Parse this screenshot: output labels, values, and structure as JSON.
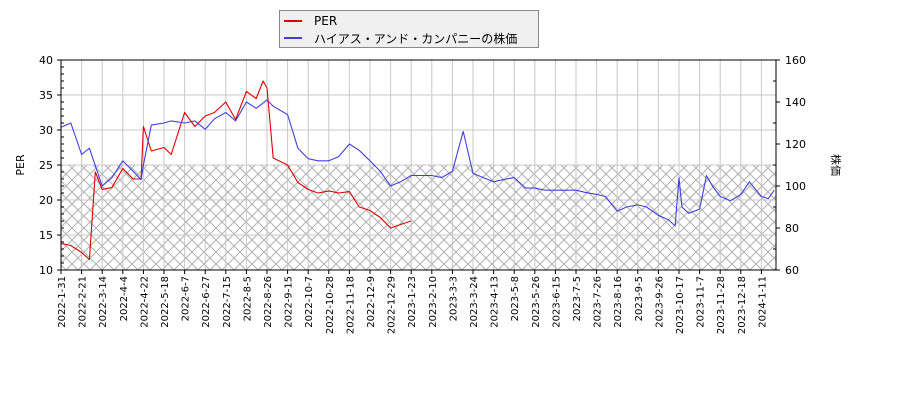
{
  "legend": {
    "items": [
      {
        "label": "PER",
        "color": "#e00000"
      },
      {
        "label": "ハイアス・アンド・カンパニーの株価",
        "color": "#4040e0"
      }
    ]
  },
  "axes": {
    "left_title": "PER",
    "right_title": "株価",
    "left_ticks": [
      "10",
      "15",
      "20",
      "25",
      "30",
      "35",
      "40"
    ],
    "right_ticks": [
      "60",
      "80",
      "100",
      "120",
      "140",
      "160"
    ]
  },
  "chart_data": {
    "type": "line",
    "title": "",
    "xlabel": "",
    "ylabel": "PER",
    "ylabel_right": "株価",
    "ylim": [
      10,
      40
    ],
    "ylim_right": [
      60,
      160
    ],
    "grid": true,
    "legend_position": "top",
    "shaded_region": {
      "axis": "left",
      "from": 10,
      "to": 25,
      "pattern": "crosshatch"
    },
    "x_tick_labels": [
      "2022-1-31",
      "2022-2-21",
      "2022-3-14",
      "2022-4-4",
      "2022-4-22",
      "2022-5-18",
      "2022-6-7",
      "2022-6-27",
      "2022-7-15",
      "2022-8-5",
      "2022-8-26",
      "2022-9-15",
      "2022-10-7",
      "2022-10-28",
      "2022-11-18",
      "2022-12-9",
      "2022-12-29",
      "2023-1-23",
      "2023-2-10",
      "2023-3-3",
      "2023-3-24",
      "2023-4-13",
      "2023-5-8",
      "2023-5-26",
      "2023-6-15",
      "2023-7-5",
      "2023-7-26",
      "2023-8-16",
      "2023-9-5",
      "2023-9-26",
      "2023-10-17",
      "2023-11-7",
      "2023-11-28",
      "2023-12-18",
      "2024-1-11"
    ],
    "series": [
      {
        "name": "PER",
        "axis": "left",
        "color": "#e00000",
        "x": [
          "2022-1-31",
          "2022-2-10",
          "2022-2-21",
          "2022-3-1",
          "2022-3-7",
          "2022-3-14",
          "2022-3-24",
          "2022-4-4",
          "2022-4-13",
          "2022-4-20",
          "2022-4-22",
          "2022-5-2",
          "2022-5-18",
          "2022-5-25",
          "2022-6-7",
          "2022-6-17",
          "2022-6-27",
          "2022-7-5",
          "2022-7-15",
          "2022-7-25",
          "2022-8-5",
          "2022-8-15",
          "2022-8-22",
          "2022-8-26",
          "2022-9-1",
          "2022-9-15",
          "2022-9-26",
          "2022-10-7",
          "2022-10-17",
          "2022-10-28",
          "2022-11-7",
          "2022-11-18",
          "2022-11-28",
          "2022-12-9",
          "2022-12-19",
          "2022-12-29",
          "2023-1-10",
          "2023-1-23"
        ],
        "values": [
          13.8,
          13.5,
          12.5,
          11.5,
          24.0,
          21.5,
          21.8,
          24.5,
          23.0,
          23.0,
          30.5,
          27.0,
          27.5,
          26.5,
          32.5,
          30.5,
          32.0,
          32.5,
          34.0,
          31.5,
          35.5,
          34.5,
          37.0,
          36.0,
          26.0,
          25.0,
          22.5,
          21.5,
          21.0,
          21.3,
          21.0,
          21.2,
          19.0,
          18.5,
          17.5,
          16.0,
          16.5,
          17.0
        ]
      },
      {
        "name": "ハイアス・アンド・カンパニーの株価",
        "axis": "right",
        "color": "#4040e0",
        "x": [
          "2022-1-31",
          "2022-2-10",
          "2022-2-21",
          "2022-3-1",
          "2022-3-14",
          "2022-3-24",
          "2022-4-4",
          "2022-4-13",
          "2022-4-20",
          "2022-4-22",
          "2022-5-2",
          "2022-5-18",
          "2022-5-25",
          "2022-6-7",
          "2022-6-17",
          "2022-6-27",
          "2022-7-5",
          "2022-7-15",
          "2022-7-25",
          "2022-8-5",
          "2022-8-15",
          "2022-8-26",
          "2022-9-1",
          "2022-9-15",
          "2022-9-26",
          "2022-10-7",
          "2022-10-17",
          "2022-10-28",
          "2022-11-7",
          "2022-11-18",
          "2022-11-28",
          "2022-12-9",
          "2022-12-19",
          "2022-12-29",
          "2023-1-10",
          "2023-1-23",
          "2023-2-10",
          "2023-2-20",
          "2023-3-3",
          "2023-3-14",
          "2023-3-24",
          "2023-4-3",
          "2023-4-13",
          "2023-4-24",
          "2023-5-8",
          "2023-5-18",
          "2023-5-26",
          "2023-6-5",
          "2023-6-15",
          "2023-6-26",
          "2023-7-5",
          "2023-7-14",
          "2023-7-26",
          "2023-8-4",
          "2023-8-16",
          "2023-8-25",
          "2023-9-5",
          "2023-9-14",
          "2023-9-26",
          "2023-10-6",
          "2023-10-13",
          "2023-10-17",
          "2023-10-20",
          "2023-10-27",
          "2023-11-7",
          "2023-11-14",
          "2023-11-20",
          "2023-11-28",
          "2023-12-8",
          "2023-12-18",
          "2023-12-28",
          "2024-1-11",
          "2024-1-19",
          "2024-1-26"
        ],
        "values": [
          128,
          130,
          115,
          118,
          100,
          104,
          112,
          107,
          103,
          110,
          129,
          130,
          131,
          130,
          131,
          127,
          132,
          135,
          131,
          140,
          137,
          141,
          138,
          134,
          118,
          113,
          112,
          112,
          114,
          120,
          117,
          112,
          107,
          100,
          102,
          105,
          105,
          104,
          107,
          126,
          106,
          104,
          102,
          103,
          104,
          99,
          99,
          98,
          98,
          98,
          98,
          97,
          96,
          95,
          88,
          90,
          91,
          90,
          86,
          84,
          81,
          104,
          90,
          87,
          89,
          105,
          100,
          95,
          93,
          96,
          102,
          95,
          94,
          98
        ]
      }
    ]
  }
}
